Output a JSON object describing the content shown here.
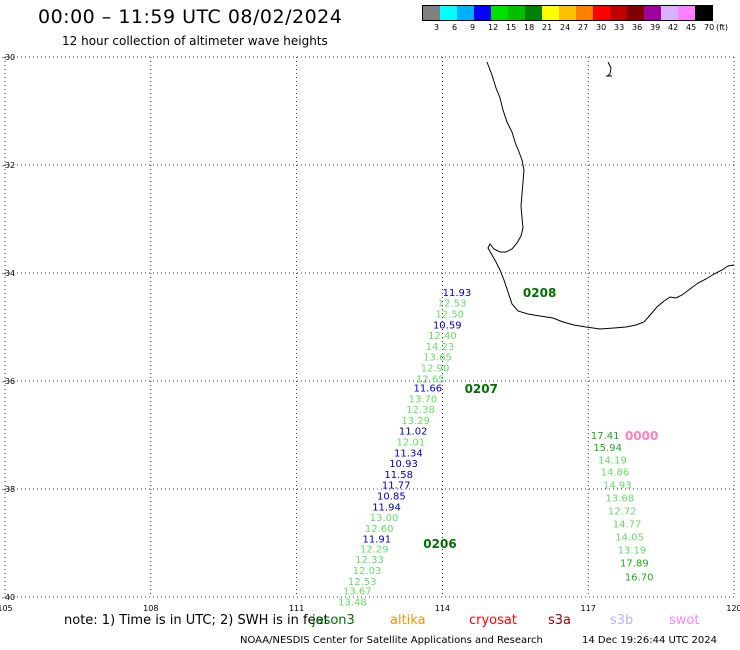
{
  "header": {
    "title": "00:00 – 11:59 UTC 08/02/2024",
    "subtitle": "12 hour collection of altimeter wave heights"
  },
  "legend": {
    "unit_label": "(ft)",
    "bins": [
      {
        "label": "3",
        "color": "#808080"
      },
      {
        "label": "6",
        "color": "#00ffff"
      },
      {
        "label": "9",
        "color": "#00b0ff"
      },
      {
        "label": "12",
        "color": "#0000ff"
      },
      {
        "label": "15",
        "color": "#00e000"
      },
      {
        "label": "18",
        "color": "#00c000"
      },
      {
        "label": "21",
        "color": "#008000"
      },
      {
        "label": "24",
        "color": "#ffff00"
      },
      {
        "label": "27",
        "color": "#ffc000"
      },
      {
        "label": "30",
        "color": "#ff8000"
      },
      {
        "label": "33",
        "color": "#ff0000"
      },
      {
        "label": "36",
        "color": "#c00000"
      },
      {
        "label": "39",
        "color": "#800000"
      },
      {
        "label": "42",
        "color": "#a000a0"
      },
      {
        "label": "45",
        "color": "#d8b0ff"
      },
      {
        "label": "70",
        "color": "#ff80ff"
      },
      {
        "label": "",
        "color": "#000000"
      }
    ]
  },
  "map": {
    "lat_range": [
      -40,
      -30
    ],
    "lon_range": [
      105,
      120
    ],
    "lat_labels": [
      "-30",
      "-32",
      "-34",
      "-36",
      "-38",
      "-40"
    ],
    "lat_values": [
      -30,
      -32,
      -34,
      -36,
      -38,
      -40
    ],
    "lon_labels": [
      "105",
      "108",
      "111",
      "114",
      "117",
      "120"
    ],
    "lon_values": [
      105,
      108,
      111,
      114,
      117,
      120
    ],
    "grid": "dotted"
  },
  "observations": {
    "track_main": [
      {
        "value": "11.93",
        "lat": -34.35,
        "lon": 114.3,
        "color": "#0000c0"
      },
      {
        "value": "12.53",
        "lat": -34.55,
        "lon": 114.2,
        "color": "#66dd66"
      },
      {
        "value": "12.50",
        "lat": -34.75,
        "lon": 114.15,
        "color": "#66dd66"
      },
      {
        "value": "10.59",
        "lat": -34.95,
        "lon": 114.1,
        "color": "#0000c0"
      },
      {
        "value": "12.40",
        "lat": -35.15,
        "lon": 114.0,
        "color": "#66dd66"
      },
      {
        "value": "14.23",
        "lat": -35.35,
        "lon": 113.95,
        "color": "#66dd66"
      },
      {
        "value": "13.65",
        "lat": -35.55,
        "lon": 113.9,
        "color": "#66dd66"
      },
      {
        "value": "12.90",
        "lat": -35.75,
        "lon": 113.85,
        "color": "#66dd66"
      },
      {
        "value": "12.65",
        "lat": -35.95,
        "lon": 113.75,
        "color": "#66dd66"
      },
      {
        "value": "11.66",
        "lat": -36.12,
        "lon": 113.7,
        "color": "#0000c0"
      },
      {
        "value": "13.70",
        "lat": -36.32,
        "lon": 113.6,
        "color": "#66dd66"
      },
      {
        "value": "12.38",
        "lat": -36.52,
        "lon": 113.55,
        "color": "#66dd66"
      },
      {
        "value": "13.29",
        "lat": -36.72,
        "lon": 113.45,
        "color": "#66dd66"
      },
      {
        "value": "11.02",
        "lat": -36.92,
        "lon": 113.4,
        "color": "#0000c0"
      },
      {
        "value": "12.01",
        "lat": -37.12,
        "lon": 113.35,
        "color": "#66dd66"
      },
      {
        "value": "11.34",
        "lat": -37.32,
        "lon": 113.3,
        "color": "#0000c0"
      },
      {
        "value": "10.93",
        "lat": -37.52,
        "lon": 113.2,
        "color": "#0000c0"
      },
      {
        "value": "11.58",
        "lat": -37.72,
        "lon": 113.1,
        "color": "#0000c0"
      },
      {
        "value": "11.77",
        "lat": -37.92,
        "lon": 113.05,
        "color": "#0000c0"
      },
      {
        "value": "10.85",
        "lat": -38.12,
        "lon": 112.95,
        "color": "#0000c0"
      },
      {
        "value": "11.94",
        "lat": -38.32,
        "lon": 112.85,
        "color": "#0000c0"
      },
      {
        "value": "13.00",
        "lat": -38.52,
        "lon": 112.8,
        "color": "#66dd66"
      },
      {
        "value": "12.60",
        "lat": -38.72,
        "lon": 112.7,
        "color": "#66dd66"
      },
      {
        "value": "11.91",
        "lat": -38.92,
        "lon": 112.65,
        "color": "#0000c0"
      },
      {
        "value": "12.29",
        "lat": -39.1,
        "lon": 112.6,
        "color": "#66dd66"
      },
      {
        "value": "12.33",
        "lat": -39.3,
        "lon": 112.5,
        "color": "#66dd66"
      },
      {
        "value": "12.03",
        "lat": -39.5,
        "lon": 112.45,
        "color": "#66dd66"
      },
      {
        "value": "12.53",
        "lat": -39.7,
        "lon": 112.35,
        "color": "#66dd66"
      },
      {
        "value": "13.67",
        "lat": -39.88,
        "lon": 112.25,
        "color": "#66dd66"
      },
      {
        "value": "13.48",
        "lat": -40.08,
        "lon": 112.15,
        "color": "#66dd66"
      }
    ],
    "track_east": [
      {
        "value": "17.41",
        "lat": -37.0,
        "lon": 117.35,
        "color": "#22aa22"
      },
      {
        "value": "15.94",
        "lat": -37.22,
        "lon": 117.4,
        "color": "#22aa22"
      },
      {
        "value": "14.19",
        "lat": -37.45,
        "lon": 117.5,
        "color": "#66dd66"
      },
      {
        "value": "14.86",
        "lat": -37.68,
        "lon": 117.55,
        "color": "#66dd66"
      },
      {
        "value": "14.93",
        "lat": -37.92,
        "lon": 117.6,
        "color": "#66dd66"
      },
      {
        "value": "13.68",
        "lat": -38.16,
        "lon": 117.65,
        "color": "#66dd66"
      },
      {
        "value": "12.72",
        "lat": -38.4,
        "lon": 117.7,
        "color": "#66dd66"
      },
      {
        "value": "14.77",
        "lat": -38.64,
        "lon": 117.8,
        "color": "#66dd66"
      },
      {
        "value": "14.05",
        "lat": -38.88,
        "lon": 117.85,
        "color": "#66dd66"
      },
      {
        "value": "13.19",
        "lat": -39.12,
        "lon": 117.9,
        "color": "#66dd66"
      },
      {
        "value": "17.89",
        "lat": -39.36,
        "lon": 117.95,
        "color": "#22aa22"
      },
      {
        "value": "16.70",
        "lat": -39.62,
        "lon": 118.05,
        "color": "#22aa22"
      }
    ],
    "pass_labels": [
      {
        "text": "0208",
        "lat": -34.37,
        "lon": 116.0,
        "color": "#007000"
      },
      {
        "text": "0207",
        "lat": -36.15,
        "lon": 114.8,
        "color": "#007000"
      },
      {
        "text": "0206",
        "lat": -39.02,
        "lon": 113.95,
        "color": "#007000"
      },
      {
        "text": "0000",
        "lat": -37.02,
        "lon": 118.1,
        "color": "#ff80c0"
      }
    ]
  },
  "footer": {
    "note": "note: 1) Time is in UTC; 2) SWH is in feet",
    "missions": [
      {
        "name": "jason3",
        "color": "#007000"
      },
      {
        "name": "altika",
        "color": "#ff9000"
      },
      {
        "name": "cryosat",
        "color": "#ff0000"
      },
      {
        "name": "s3a",
        "color": "#a00000"
      },
      {
        "name": "s3b",
        "color": "#c0b0ff"
      },
      {
        "name": "swot",
        "color": "#ff80ff"
      }
    ],
    "credit": "NOAA/NESDIS Center for Satellite Applications and Research",
    "timestamp": "14 Dec 19:26:44 UTC 2024"
  }
}
